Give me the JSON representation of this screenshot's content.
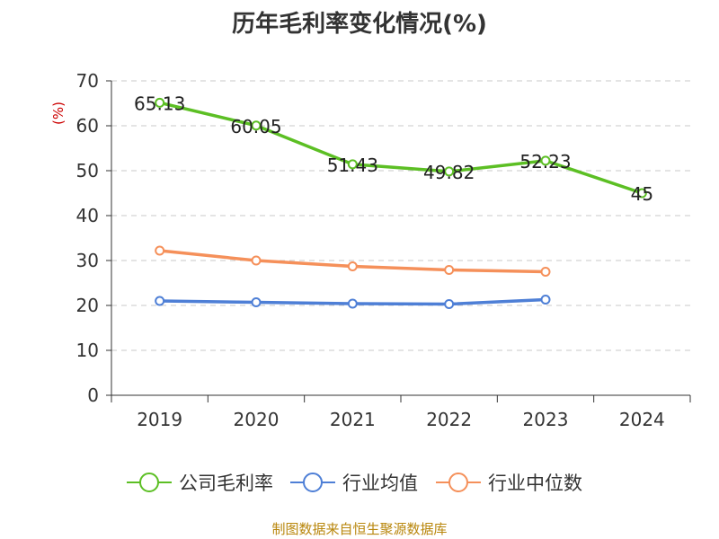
{
  "title": "历年毛利率变化情况(%)",
  "source": "制图数据来自恒生聚源数据库",
  "chart_data": {
    "type": "line",
    "title": "历年毛利率变化情况(%)",
    "ylabel": "(%)",
    "ylim": [
      0,
      70
    ],
    "yticks": [
      0,
      10,
      20,
      30,
      40,
      50,
      60,
      70
    ],
    "grid": true,
    "legend_position": "bottom",
    "categories": [
      "2019",
      "2020",
      "2021",
      "2022",
      "2023",
      "2024"
    ],
    "series": [
      {
        "name": "公司毛利率",
        "color": "#5cbf24",
        "values": [
          65.13,
          60.05,
          51.43,
          49.82,
          52.23,
          45
        ],
        "labels": [
          "65.13",
          "60.05",
          "51.43",
          "49.82",
          "52.23",
          "45"
        ]
      },
      {
        "name": "行业均值",
        "color": "#4e7fd6",
        "values": [
          21.0,
          20.7,
          20.4,
          20.3,
          21.3,
          null
        ]
      },
      {
        "name": "行业中位数",
        "color": "#f5905a",
        "values": [
          32.2,
          30.0,
          28.7,
          27.9,
          27.5,
          null
        ]
      }
    ]
  }
}
